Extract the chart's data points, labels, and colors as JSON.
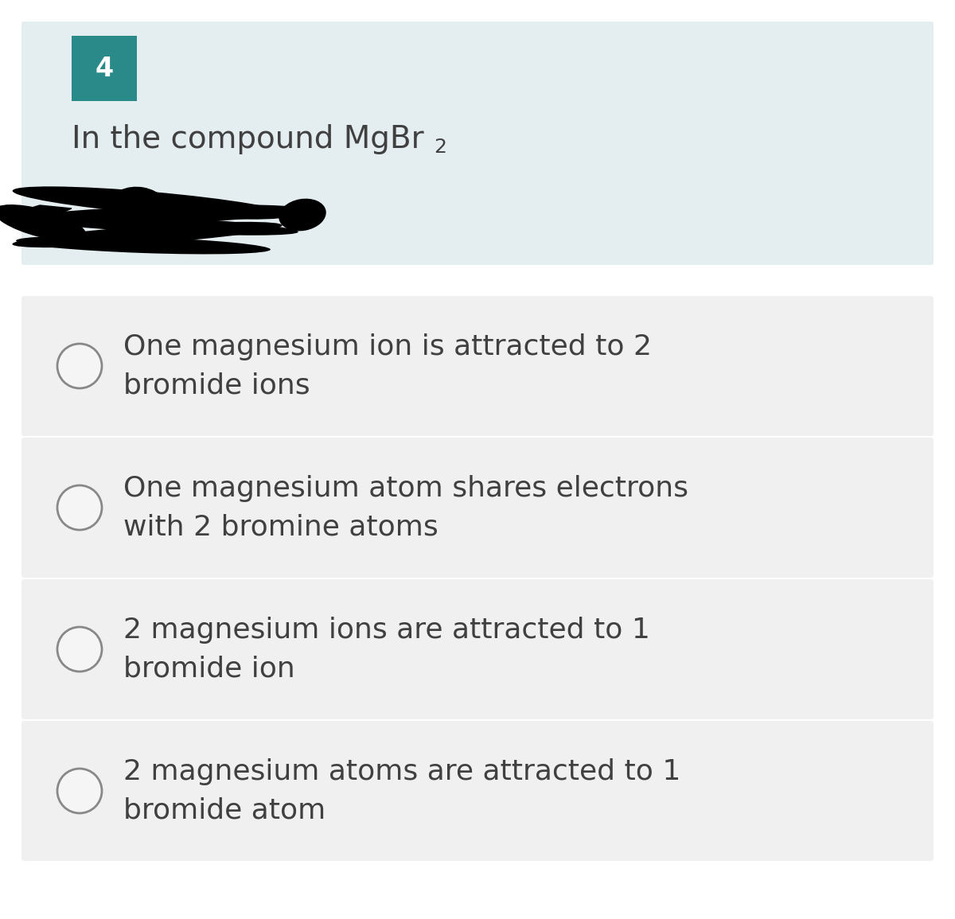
{
  "question_number": "4",
  "question_number_bg": "#2a8a8a",
  "question_number_color": "#ffffff",
  "question_bg": "#e4edf0",
  "question_text_line1": "In the compound MgBr",
  "question_subscript": "2",
  "options": [
    "One magnesium ion is attracted to 2\nbromide ions",
    "One magnesium atom shares electrons\nwith 2 bromine atoms",
    "2 magnesium ions are attracted to 1\nbromide ion",
    "2 magnesium atoms are attracted to 1\nbromide atom"
  ],
  "option_bg": "#f0f0f0",
  "option_text_color": "#404040",
  "circle_fill": "#f5f5f5",
  "circle_edge": "#888888",
  "overall_bg": "#ffffff",
  "font_size_question": 28,
  "font_size_options": 26,
  "font_size_number": 24,
  "font_size_subscript": 18
}
